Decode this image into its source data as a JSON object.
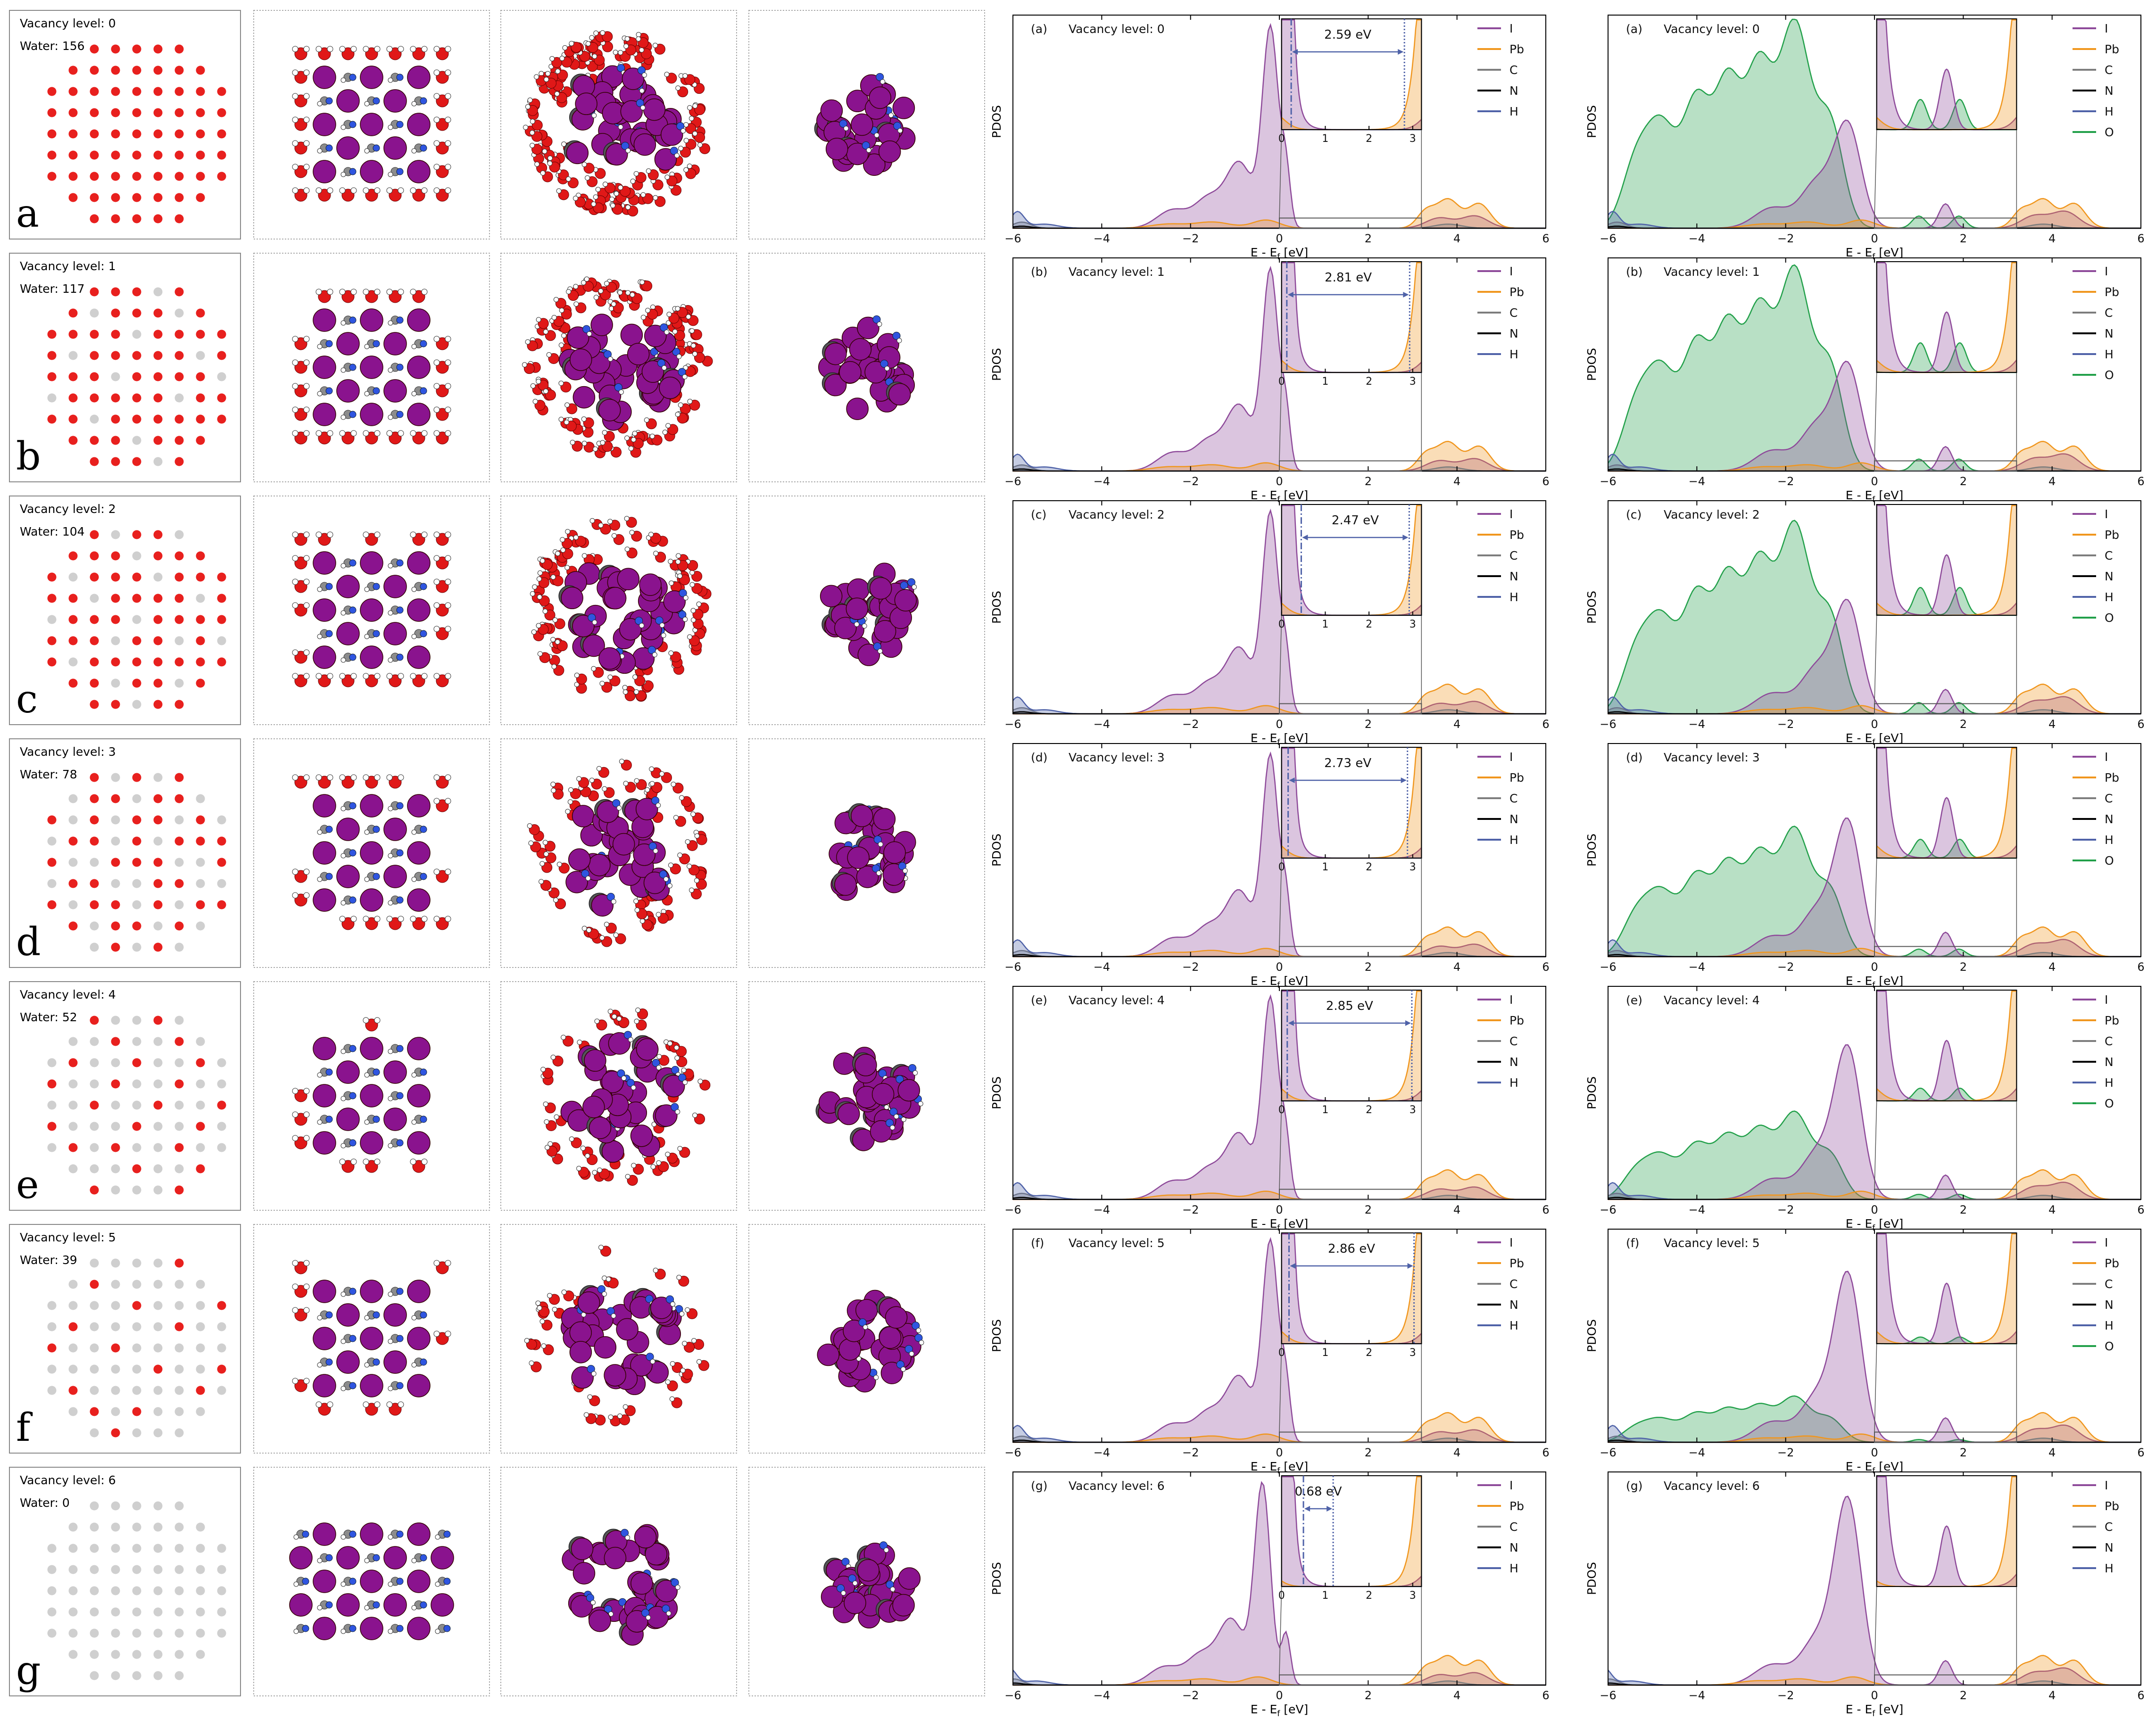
{
  "colors": {
    "I": "#8e4a9a",
    "Pb": "#f0961e",
    "C": "#7d7d7d",
    "N": "#000000",
    "H": "#4f62a8",
    "O": "#22a04a",
    "site_on": "#e8201e",
    "site_off": "#cfcfcf",
    "atom_I": "#8a138e",
    "atom_Pb": "#55555a",
    "atom_O": "#e01818",
    "atom_N": "#2f55e0",
    "atom_C": "#8c8c8c",
    "atom_H": "#ffffff"
  },
  "panel_text": {
    "vacancy_prefix": "Vacancy level: ",
    "water_prefix": "Water: ",
    "ylabel": "PDOS",
    "xlabel": "E - Ef [eV]",
    "xlabel_main": "E - E",
    "xlabel_sub": "f",
    "xlabel_tail": " [eV]"
  },
  "rows": [
    {
      "letter": "a",
      "tag": "(a)",
      "vacancy": "0",
      "water": "156",
      "gap": "2.59 eV",
      "gap_lo": 0.22,
      "gap_hi": 2.81,
      "sites": [
        0,
        0,
        1,
        1,
        1,
        1,
        1,
        0,
        0,
        0,
        1,
        1,
        1,
        1,
        1,
        1,
        1,
        0,
        1,
        1,
        1,
        1,
        1,
        1,
        1,
        1,
        1,
        1,
        1,
        1,
        1,
        1,
        1,
        1,
        1,
        1,
        1,
        1,
        1,
        1,
        1,
        1,
        1,
        1,
        1,
        1,
        1,
        1,
        1,
        1,
        1,
        1,
        1,
        1,
        1,
        1,
        1,
        1,
        1,
        1,
        1,
        1,
        1,
        0,
        1,
        1,
        1,
        1,
        1,
        1,
        1,
        0,
        0,
        0,
        1,
        1,
        1,
        1,
        1,
        0,
        0
      ],
      "legend1": [
        "I",
        "Pb",
        "C",
        "N",
        "H"
      ],
      "legend2": [
        "I",
        "Pb",
        "C",
        "N",
        "H",
        "O"
      ]
    },
    {
      "letter": "b",
      "tag": "(b)",
      "vacancy": "1",
      "water": "117",
      "gap": "2.81 eV",
      "gap_lo": 0.12,
      "gap_hi": 2.93,
      "sites": [
        0,
        0,
        1,
        1,
        1,
        0,
        1,
        0,
        0,
        0,
        1,
        0,
        1,
        1,
        1,
        0,
        1,
        0,
        1,
        1,
        1,
        1,
        0,
        1,
        1,
        1,
        1,
        1,
        0,
        1,
        1,
        1,
        1,
        1,
        0,
        1,
        1,
        1,
        1,
        0,
        1,
        1,
        1,
        1,
        0,
        0,
        1,
        1,
        1,
        1,
        1,
        0,
        1,
        1,
        1,
        1,
        0,
        1,
        1,
        1,
        1,
        1,
        1,
        0,
        1,
        1,
        1,
        0,
        1,
        1,
        1,
        0,
        0,
        0,
        1,
        1,
        1,
        0,
        1,
        0,
        0
      ],
      "legend1": [
        "I",
        "Pb",
        "C",
        "N",
        "H"
      ],
      "legend2": [
        "I",
        "Pb",
        "C",
        "N",
        "H",
        "O"
      ]
    },
    {
      "letter": "c",
      "tag": "(c)",
      "vacancy": "2",
      "water": "104",
      "gap": "2.47 eV",
      "gap_lo": 0.45,
      "gap_hi": 2.92,
      "sites": [
        0,
        0,
        1,
        0,
        1,
        1,
        0,
        0,
        0,
        0,
        1,
        1,
        1,
        0,
        1,
        1,
        1,
        0,
        1,
        0,
        1,
        1,
        1,
        0,
        1,
        1,
        1,
        1,
        1,
        0,
        1,
        1,
        1,
        1,
        0,
        1,
        0,
        1,
        1,
        1,
        0,
        1,
        1,
        1,
        1,
        1,
        1,
        1,
        0,
        1,
        1,
        0,
        1,
        0,
        1,
        0,
        1,
        1,
        1,
        1,
        1,
        1,
        1,
        0,
        1,
        1,
        0,
        1,
        1,
        0,
        1,
        0,
        0,
        0,
        1,
        1,
        0,
        1,
        1,
        0,
        0
      ],
      "legend1": [
        "I",
        "Pb",
        "C",
        "N",
        "H"
      ],
      "legend2": [
        "I",
        "Pb",
        "C",
        "N",
        "H",
        "O"
      ]
    },
    {
      "letter": "d",
      "tag": "(d)",
      "vacancy": "3",
      "water": "78",
      "gap": "2.73 eV",
      "gap_lo": 0.15,
      "gap_hi": 2.88,
      "sites": [
        0,
        0,
        1,
        0,
        1,
        0,
        1,
        0,
        0,
        0,
        0,
        1,
        1,
        0,
        1,
        1,
        0,
        0,
        1,
        0,
        1,
        0,
        1,
        1,
        0,
        1,
        0,
        0,
        1,
        1,
        0,
        1,
        0,
        1,
        1,
        1,
        1,
        0,
        0,
        1,
        1,
        1,
        0,
        0,
        1,
        0,
        1,
        1,
        0,
        0,
        1,
        1,
        0,
        0,
        1,
        0,
        1,
        1,
        0,
        1,
        0,
        1,
        1,
        0,
        1,
        0,
        1,
        1,
        0,
        1,
        0,
        0,
        0,
        0,
        0,
        1,
        0,
        1,
        0,
        0,
        0
      ],
      "legend1": [
        "I",
        "Pb",
        "C",
        "N",
        "H"
      ],
      "legend2": [
        "I",
        "Pb",
        "C",
        "N",
        "H",
        "O"
      ]
    },
    {
      "letter": "e",
      "tag": "(e)",
      "vacancy": "4",
      "water": "52",
      "gap": "2.85 eV",
      "gap_lo": 0.13,
      "gap_hi": 2.98,
      "sites": [
        0,
        0,
        1,
        0,
        0,
        1,
        0,
        0,
        0,
        0,
        0,
        0,
        1,
        0,
        0,
        1,
        0,
        0,
        0,
        1,
        0,
        0,
        1,
        0,
        0,
        1,
        0,
        1,
        0,
        0,
        1,
        0,
        0,
        1,
        0,
        0,
        0,
        0,
        1,
        0,
        0,
        1,
        0,
        0,
        1,
        1,
        0,
        0,
        0,
        1,
        0,
        0,
        1,
        0,
        0,
        1,
        0,
        1,
        0,
        0,
        1,
        0,
        0,
        0,
        0,
        0,
        0,
        1,
        0,
        0,
        1,
        0,
        0,
        0,
        1,
        0,
        0,
        0,
        1,
        0,
        0
      ],
      "legend1": [
        "I",
        "Pb",
        "C",
        "N",
        "H"
      ],
      "legend2": [
        "I",
        "Pb",
        "C",
        "N",
        "H",
        "O"
      ]
    },
    {
      "letter": "f",
      "tag": "(f)",
      "vacancy": "5",
      "water": "39",
      "gap": "2.86 eV",
      "gap_lo": 0.17,
      "gap_hi": 3.03,
      "sites": [
        0,
        0,
        0,
        0,
        0,
        0,
        1,
        0,
        0,
        0,
        0,
        1,
        0,
        0,
        0,
        0,
        0,
        0,
        0,
        0,
        0,
        0,
        1,
        0,
        0,
        0,
        1,
        0,
        1,
        0,
        0,
        0,
        0,
        1,
        0,
        0,
        1,
        0,
        0,
        1,
        0,
        0,
        0,
        0,
        0,
        0,
        0,
        0,
        0,
        0,
        1,
        0,
        0,
        1,
        0,
        1,
        0,
        0,
        0,
        0,
        0,
        1,
        0,
        0,
        0,
        1,
        0,
        1,
        0,
        0,
        0,
        0,
        0,
        0,
        0,
        1,
        0,
        0,
        0,
        0,
        0
      ],
      "legend1": [
        "I",
        "Pb",
        "C",
        "N",
        "H"
      ],
      "legend2": [
        "I",
        "Pb",
        "C",
        "N",
        "H",
        "O"
      ]
    },
    {
      "letter": "g",
      "tag": "(g)",
      "vacancy": "6",
      "water": "0",
      "gap": "0.68 eV",
      "gap_lo": 0.5,
      "gap_hi": 1.18,
      "sites": [
        0,
        0,
        0,
        0,
        0,
        0,
        0,
        0,
        0,
        0,
        0,
        0,
        0,
        0,
        0,
        0,
        0,
        0,
        0,
        0,
        0,
        0,
        0,
        0,
        0,
        0,
        0,
        0,
        0,
        0,
        0,
        0,
        0,
        0,
        0,
        0,
        0,
        0,
        0,
        0,
        0,
        0,
        0,
        0,
        0,
        0,
        0,
        0,
        0,
        0,
        0,
        0,
        0,
        0,
        0,
        0,
        0,
        0,
        0,
        0,
        0,
        0,
        0,
        0,
        0,
        0,
        0,
        0,
        0,
        0,
        0,
        0,
        0,
        0,
        0,
        0,
        0,
        0,
        0,
        0,
        0
      ],
      "legend1": [
        "I",
        "Pb",
        "C",
        "N",
        "H"
      ],
      "legend2": [
        "I",
        "Pb",
        "C",
        "N",
        "H"
      ]
    }
  ],
  "chart_data": [
    {
      "type": "area",
      "description_only": false,
      "xlim": [
        -6,
        6
      ],
      "xticks": [
        "-6",
        "-4",
        "-2",
        "0",
        "2",
        "4",
        "6"
      ],
      "inset_xlim": [
        0,
        3.2
      ],
      "inset_xticks": [
        "0",
        "1",
        "2",
        "3"
      ],
      "series": [
        {
          "name": "I",
          "peaks": [
            [
              -2.4,
              0.09,
              0.35
            ],
            [
              -1.6,
              0.14,
              0.3
            ],
            [
              -0.9,
              0.32,
              0.3
            ],
            [
              -0.2,
              0.98,
              0.18
            ],
            [
              0.15,
              0.25,
              0.1
            ],
            [
              3.6,
              0.05,
              0.3
            ],
            [
              4.4,
              0.06,
              0.3
            ]
          ]
        },
        {
          "name": "Pb",
          "peaks": [
            [
              -2.5,
              0.02,
              0.4
            ],
            [
              -1.5,
              0.03,
              0.4
            ],
            [
              -0.3,
              0.04,
              0.3
            ],
            [
              3.8,
              0.14,
              0.25
            ],
            [
              4.5,
              0.12,
              0.25
            ],
            [
              3.3,
              0.08,
              0.2
            ]
          ]
        },
        {
          "name": "C",
          "peaks": [
            [
              -5.8,
              0.03,
              0.2
            ],
            [
              3.8,
              0.02,
              0.3
            ]
          ]
        },
        {
          "name": "N",
          "peaks": [
            [
              -5.8,
              0.01,
              0.2
            ]
          ]
        },
        {
          "name": "H",
          "peaks": [
            [
              -5.9,
              0.08,
              0.15
            ],
            [
              -5.3,
              0.02,
              0.3
            ]
          ]
        }
      ]
    }
  ]
}
